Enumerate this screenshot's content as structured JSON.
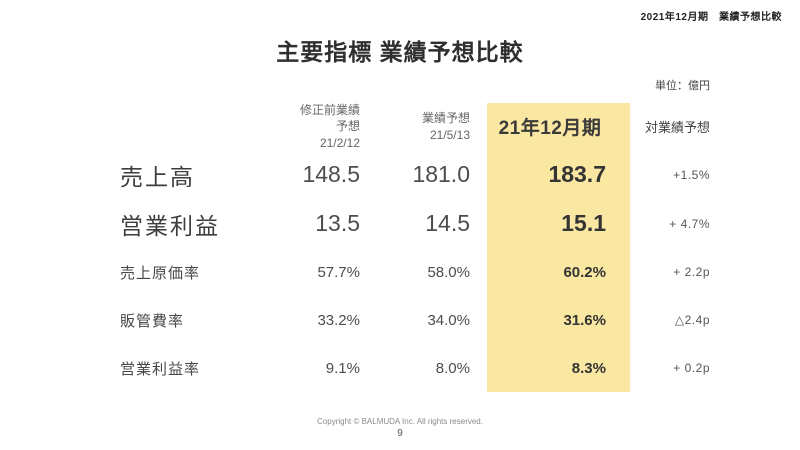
{
  "page_header": "2021年12月期　業績予想比較",
  "title": "主要指標 業績予想比較",
  "unit_label": "単位：億円",
  "colors": {
    "highlight": "#fae7a1",
    "text_dark": "#3a3a3a",
    "text_gray": "#555555"
  },
  "table": {
    "col_headers": {
      "col1_line1": "修正前業績予想",
      "col1_line2": "21/2/12",
      "col2_line1": "業績予想",
      "col2_line2": "21/5/13",
      "col3": "21年12月期",
      "col4": "対業績予想"
    },
    "rows": [
      {
        "label": "売上高",
        "c1": "148.5",
        "c2": "181.0",
        "c3": "183.7",
        "c4": "+1.5%"
      },
      {
        "label": "営業利益",
        "c1": "13.5",
        "c2": "14.5",
        "c3": "15.1",
        "c4": "+ 4.7%"
      },
      {
        "label": "売上原価率",
        "c1": "57.7%",
        "c2": "58.0%",
        "c3": "60.2%",
        "c4": "+ 2.2p"
      },
      {
        "label": "販管費率",
        "c1": "33.2%",
        "c2": "34.0%",
        "c3": "31.6%",
        "c4": "△2.4p"
      },
      {
        "label": "営業利益率",
        "c1": "9.1%",
        "c2": "8.0%",
        "c3": "8.3%",
        "c4": "+ 0.2p"
      }
    ]
  },
  "footer": {
    "copyright": "Copyright © BALMUDA Inc. All rights reserved.",
    "page_number": "9"
  }
}
